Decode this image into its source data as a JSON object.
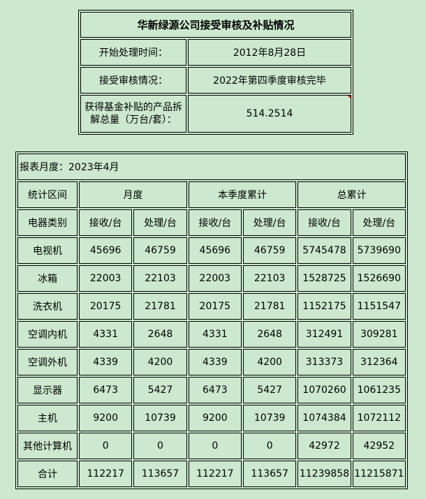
{
  "summary": {
    "title": "华新绿源公司接受审核及补贴情况",
    "rows": [
      {
        "label": "开始处理时间：",
        "value": "2012年8月28日"
      },
      {
        "label": "接受审核情况：",
        "value": "2022年第四季度审核完毕"
      },
      {
        "label": "获得基金补贴的产品拆解总量（万台/套）：",
        "value": "514.2514"
      }
    ]
  },
  "report": {
    "month_label": "报表月度：2023年4月",
    "header1": [
      "统计区间",
      "月度",
      "本季度累计",
      "总累计"
    ],
    "header2": [
      "电器类别",
      "接收/台",
      "处理/台",
      "接收/台",
      "处理/台",
      "接收/台",
      "处理/台"
    ],
    "rows": [
      [
        "电视机",
        "45696",
        "46759",
        "45696",
        "46759",
        "5745478",
        "5739690"
      ],
      [
        "冰箱",
        "22003",
        "22103",
        "22003",
        "22103",
        "1528725",
        "1526690"
      ],
      [
        "洗衣机",
        "20175",
        "21781",
        "20175",
        "21781",
        "1152175",
        "1151547"
      ],
      [
        "空调内机",
        "4331",
        "2648",
        "4331",
        "2648",
        "312491",
        "309281"
      ],
      [
        "空调外机",
        "4339",
        "4200",
        "4339",
        "4200",
        "313373",
        "312364"
      ],
      [
        "显示器",
        "6473",
        "5427",
        "6473",
        "5427",
        "1070260",
        "1061235"
      ],
      [
        "主机",
        "9200",
        "10739",
        "9200",
        "10739",
        "1074384",
        "1072112"
      ],
      [
        "其他计算机",
        "0",
        "0",
        "0",
        "0",
        "42972",
        "42952"
      ],
      [
        "合计",
        "112217",
        "113657",
        "112217",
        "113657",
        "11239858",
        "11215871"
      ]
    ]
  }
}
